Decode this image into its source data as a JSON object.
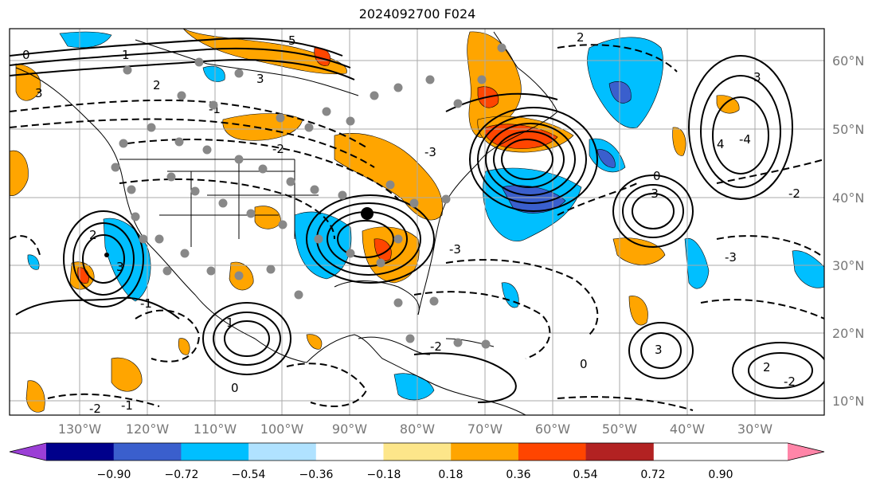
{
  "title": "2024092700 F024",
  "lat_labels": [
    "60°N",
    "50°N",
    "40°N",
    "30°N",
    "20°N",
    "10°N"
  ],
  "lon_labels": [
    "130°W",
    "120°W",
    "110°W",
    "100°W",
    "90°W",
    "80°W",
    "70°W",
    "60°W",
    "50°W",
    "40°W",
    "30°W"
  ],
  "colorbar": {
    "ticks": [
      "−0.90",
      "−0.72",
      "−0.54",
      "−0.36",
      "−0.18",
      "0.18",
      "0.36",
      "0.54",
      "0.72",
      "0.90"
    ],
    "colors": [
      "#9b3fd6",
      "#00008b",
      "#3a5fcd",
      "#00bfff",
      "#b0e2ff",
      "#ffffff",
      "#fde68a",
      "#ffa500",
      "#ff4500",
      "#b22222",
      "#ff85a8"
    ]
  },
  "colors": {
    "positive_fill": "#ffa500",
    "positive_strong": "#ff4500",
    "negative_fill": "#00bfff",
    "negative_strong": "#3a5fcd",
    "contour": "#000000",
    "stations": "#888888"
  },
  "contour_labels": [
    "5",
    "3",
    "3",
    "2",
    "2",
    "1",
    "0",
    "-1",
    "-2",
    "-3",
    "-4",
    "3",
    "4",
    "-3",
    "-2",
    "0",
    "2",
    "-1",
    "3",
    "1",
    "-3",
    "0",
    "-2",
    "-1",
    "0",
    "-3",
    "-2",
    "3",
    "2",
    "-2"
  ]
}
